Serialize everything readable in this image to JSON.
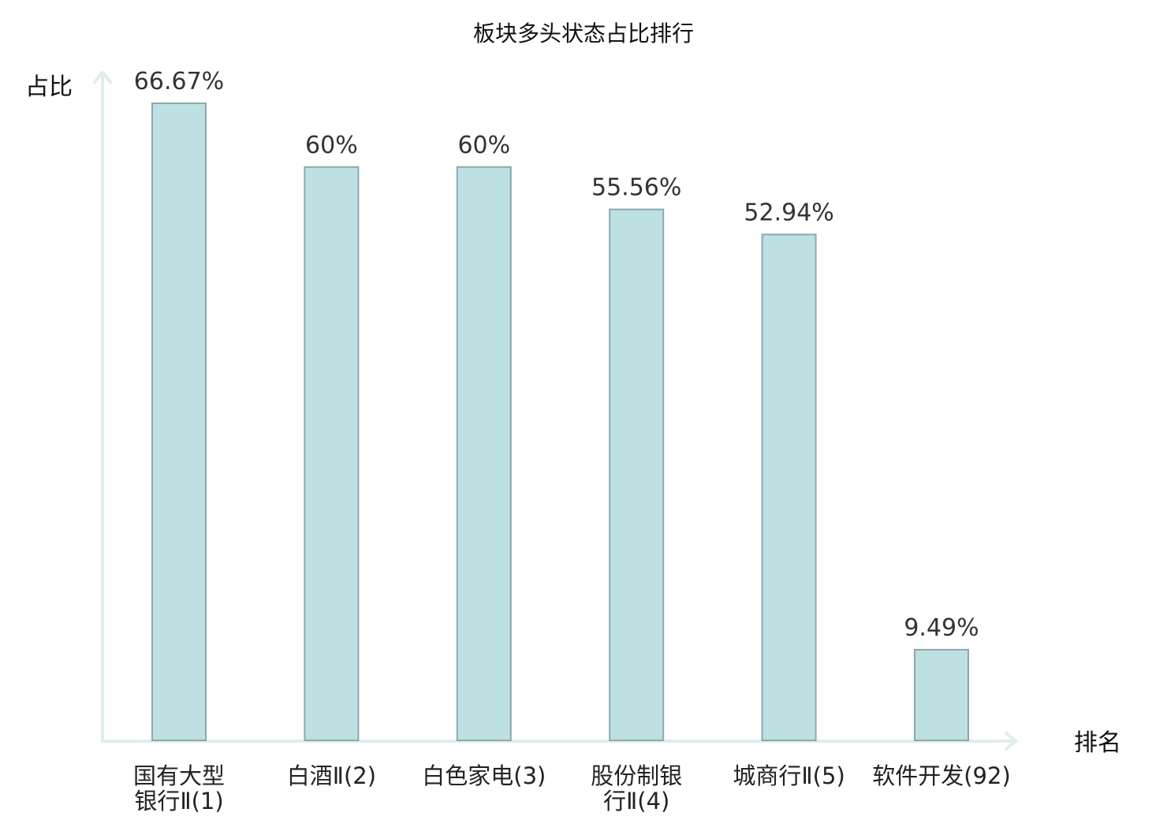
{
  "chart_data": {
    "type": "bar",
    "title": "板块多头状态占比排行",
    "xlabel": "排名",
    "ylabel": "占比",
    "categories": [
      [
        "国有大型",
        "银行Ⅱ(1)"
      ],
      [
        "白酒Ⅱ(2)"
      ],
      [
        "白色家电(3)"
      ],
      [
        "股份制银",
        "行Ⅱ(4)"
      ],
      [
        "城商行Ⅱ(5)"
      ],
      [
        "软件开发(92)"
      ]
    ],
    "values": [
      66.67,
      60,
      60,
      55.56,
      52.94,
      9.49
    ],
    "value_labels": [
      "66.67%",
      "60%",
      "60%",
      "55.56%",
      "52.94%",
      "9.49%"
    ],
    "category_colors": [
      "#222222",
      "#222222",
      "#222222",
      "#222222",
      "#222222",
      "#e02020"
    ],
    "ylim": [
      0,
      70
    ],
    "grid": false,
    "bar_color": "#bde0e3",
    "bar_edge_color": "#8ea8a9",
    "axis_color": "#ddeeed"
  }
}
